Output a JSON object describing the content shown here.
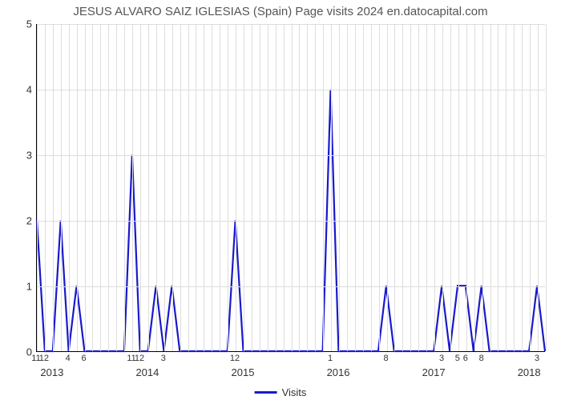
{
  "title": "JESUS ALVARO SAIZ IGLESIAS (Spain) Page visits 2024 en.datocapital.com",
  "chart": {
    "type": "line",
    "line_color": "#1919cc",
    "line_width": 2.2,
    "background_color": "#ffffff",
    "grid_color": "#dddddd",
    "y": {
      "min": 0,
      "max": 5,
      "ticks": [
        0,
        1,
        2,
        3,
        4,
        5
      ]
    },
    "x": {
      "n_points": 65,
      "minor_labels": [
        {
          "i": 0,
          "t": "11"
        },
        {
          "i": 1,
          "t": "12"
        },
        {
          "i": 4,
          "t": "4"
        },
        {
          "i": 6,
          "t": "6"
        },
        {
          "i": 12,
          "t": "11"
        },
        {
          "i": 13,
          "t": "12"
        },
        {
          "i": 16,
          "t": "3"
        },
        {
          "i": 25,
          "t": "12"
        },
        {
          "i": 37,
          "t": "1"
        },
        {
          "i": 44,
          "t": "8"
        },
        {
          "i": 51,
          "t": "3"
        },
        {
          "i": 53,
          "t": "5"
        },
        {
          "i": 54,
          "t": "6"
        },
        {
          "i": 56,
          "t": "8"
        },
        {
          "i": 63,
          "t": "3"
        }
      ],
      "major_labels": [
        {
          "i": 2,
          "t": "2013"
        },
        {
          "i": 14,
          "t": "2014"
        },
        {
          "i": 26,
          "t": "2015"
        },
        {
          "i": 38,
          "t": "2016"
        },
        {
          "i": 50,
          "t": "2017"
        },
        {
          "i": 62,
          "t": "2018"
        }
      ]
    },
    "values": [
      2,
      0,
      0,
      2,
      0,
      1,
      0,
      0,
      0,
      0,
      0,
      0,
      3,
      0,
      0,
      1,
      0,
      1,
      0,
      0,
      0,
      0,
      0,
      0,
      0,
      2,
      0,
      0,
      0,
      0,
      0,
      0,
      0,
      0,
      0,
      0,
      0,
      4,
      0,
      0,
      0,
      0,
      0,
      0,
      1,
      0,
      0,
      0,
      0,
      0,
      0,
      1,
      0,
      1,
      1,
      0,
      1,
      0,
      0,
      0,
      0,
      0,
      0,
      1,
      0
    ],
    "legend_label": "Visits"
  }
}
